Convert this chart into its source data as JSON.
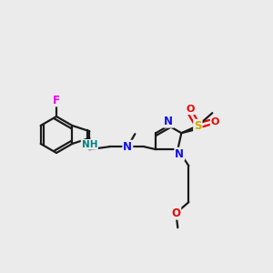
{
  "background_color": "#ebebeb",
  "bond_color": "#1a1a1a",
  "atom_colors": {
    "F": "#ee00ee",
    "N": "#1010ee",
    "NH": "#008080",
    "O": "#ee0000",
    "S": "#ccaa00",
    "C": "#1a1a1a"
  },
  "figsize": [
    3.0,
    3.0
  ],
  "dpi": 100
}
